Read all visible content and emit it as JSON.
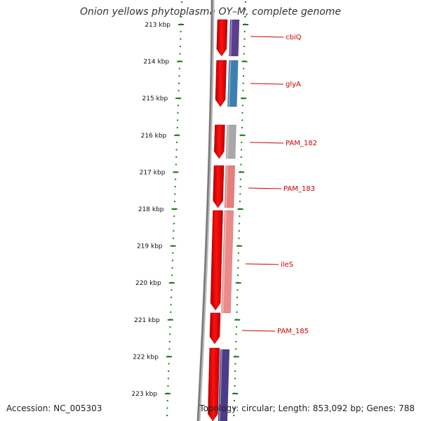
{
  "title": "Onion yellows phytoplasma OY–M, complete genome",
  "accession_text": "Accession: NC_005303",
  "topology_text": "Topology: circular; Length: 853,092 bp; Genes: 788",
  "scale": {
    "unit": "kbp",
    "ticks": [
      {
        "label": "213 kbp"
      },
      {
        "label": "214 kbp"
      },
      {
        "label": "215 kbp"
      },
      {
        "label": "216 kbp"
      },
      {
        "label": "217 kbp"
      },
      {
        "label": "218 kbp"
      },
      {
        "label": "219 kbp"
      },
      {
        "label": "220 kbp"
      },
      {
        "label": "221 kbp"
      },
      {
        "label": "222 kbp"
      },
      {
        "label": "223 kbp"
      }
    ]
  },
  "genes": [
    {
      "label": "cbiQ"
    },
    {
      "label": "glyA"
    },
    {
      "label": "PAM_182"
    },
    {
      "label": "PAM_183"
    },
    {
      "label": "ileS"
    },
    {
      "label": "PAM_185"
    }
  ],
  "colors": {
    "label_red": "#cc0000",
    "tick_green": "#1a7a1a",
    "backbone_grey": "#7a7a7a",
    "cds_red": "#e8000f",
    "cbiQ": "#5a3f8f",
    "glyA": "#3d7fb0",
    "PAM_182": "#a8a8a8",
    "PAM_183": "#e77d7d",
    "ileS": "#ec8a8a",
    "next_purple": "#4a3c86"
  }
}
